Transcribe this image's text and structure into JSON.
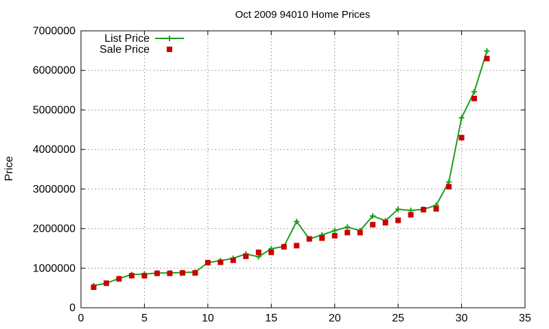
{
  "chart_data": {
    "type": "line",
    "title": "Oct 2009 94010 Home Prices",
    "xlabel": "",
    "ylabel": "Price",
    "xlim": [
      0,
      35
    ],
    "ylim": [
      0,
      7000000
    ],
    "x_ticks": [
      0,
      5,
      10,
      15,
      20,
      25,
      30,
      35
    ],
    "y_ticks": [
      0,
      1000000,
      2000000,
      3000000,
      4000000,
      5000000,
      6000000,
      7000000
    ],
    "grid": true,
    "legend_position": "top-left",
    "x": [
      1,
      2,
      3,
      4,
      5,
      6,
      7,
      8,
      9,
      10,
      11,
      12,
      13,
      14,
      15,
      16,
      17,
      18,
      19,
      20,
      21,
      22,
      23,
      24,
      25,
      26,
      27,
      28,
      29,
      30,
      31,
      32
    ],
    "series": [
      {
        "name": "List Price",
        "style": "line-plus",
        "color": "#1a9e1a",
        "values": [
          560000,
          620000,
          740000,
          840000,
          850000,
          880000,
          880000,
          890000,
          900000,
          1140000,
          1190000,
          1250000,
          1360000,
          1290000,
          1490000,
          1550000,
          2180000,
          1740000,
          1840000,
          1950000,
          2040000,
          1950000,
          2320000,
          2200000,
          2490000,
          2460000,
          2490000,
          2590000,
          3180000,
          4800000,
          5460000,
          6490000
        ]
      },
      {
        "name": "Sale Price",
        "style": "points-square",
        "color": "#cc0000",
        "values": [
          520000,
          620000,
          730000,
          810000,
          810000,
          870000,
          870000,
          880000,
          880000,
          1140000,
          1150000,
          1200000,
          1300000,
          1400000,
          1400000,
          1540000,
          1570000,
          1740000,
          1760000,
          1820000,
          1900000,
          1900000,
          2100000,
          2150000,
          2210000,
          2350000,
          2480000,
          2500000,
          3060000,
          4300000,
          5290000,
          6300000
        ]
      }
    ]
  }
}
